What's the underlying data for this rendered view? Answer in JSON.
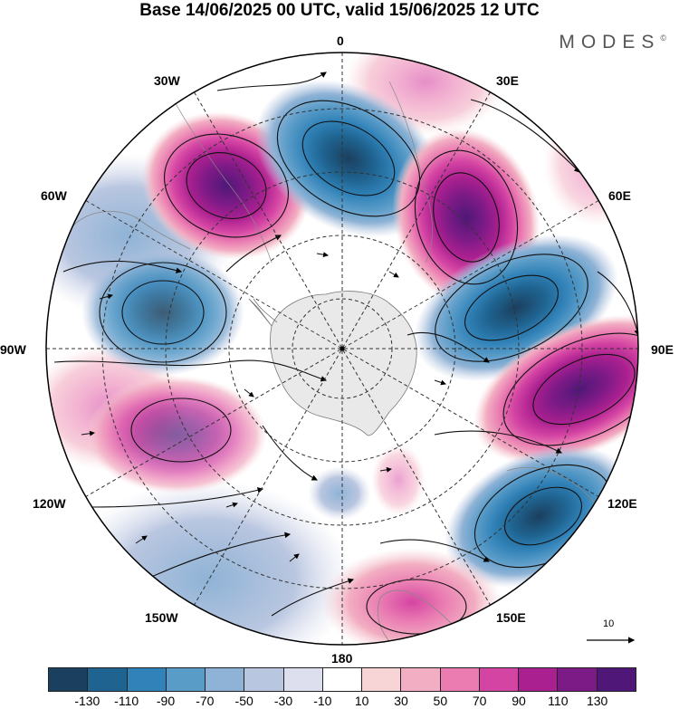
{
  "title": "Base 14/06/2025 00 UTC, valid 15/06/2025 12 UTC",
  "brand": "MODES",
  "brand_mark": "©",
  "meridian_labels": {
    "m0": "0",
    "m30e": "30E",
    "m60e": "60E",
    "m90e": "90E",
    "m120e": "120E",
    "m150e": "150E",
    "m180": "180",
    "m150w": "150W",
    "m120w": "120W",
    "m90w": "90W",
    "m60w": "60W",
    "m30w": "30W"
  },
  "reference_vector": {
    "label": "10"
  },
  "colorbar": {
    "ticks": [
      "-130",
      "-110",
      "-90",
      "-70",
      "-50",
      "-30",
      "-10",
      "10",
      "30",
      "50",
      "70",
      "90",
      "110",
      "130"
    ],
    "colors": [
      "#1b3f5e",
      "#1f6491",
      "#3182b8",
      "#5a9cc8",
      "#8fb3d6",
      "#b9c6e0",
      "#dddfee",
      "#ffffff",
      "#f7d5d7",
      "#f2aec2",
      "#ea7cb2",
      "#d444a3",
      "#ab2090",
      "#7c1a86",
      "#4f1878"
    ]
  },
  "anomaly_centers": [
    {
      "name": "low-south-atlantic",
      "sign": "low",
      "color": "#1b3f5e"
    },
    {
      "name": "high-30w",
      "sign": "high",
      "color": "#7c1a86"
    },
    {
      "name": "high-30e",
      "sign": "high",
      "color": "#7c1a86"
    },
    {
      "name": "low-60e",
      "sign": "low",
      "color": "#1b3f5e"
    },
    {
      "name": "high-90e",
      "sign": "high",
      "color": "#7c1a86"
    },
    {
      "name": "low-120e",
      "sign": "low",
      "color": "#1b3f5e"
    },
    {
      "name": "high-160e",
      "sign": "high",
      "color": "#ea7cb2"
    },
    {
      "name": "low-80w",
      "sign": "low",
      "color": "#3182b8"
    },
    {
      "name": "high-110w",
      "sign": "high",
      "color": "#d444a3"
    }
  ]
}
